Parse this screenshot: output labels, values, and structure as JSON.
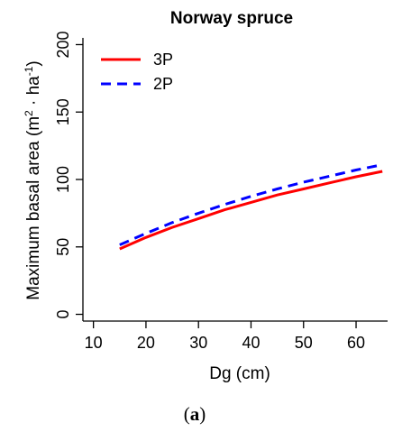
{
  "chart_data": {
    "type": "line",
    "title": "Norway spruce",
    "xlabel": "Dg (cm)",
    "ylabel": {
      "main": "Maximum basal area (m",
      "sup1": "2",
      "mid": " · ha",
      "sup2": "-1",
      "end": ")"
    },
    "xlim": [
      8,
      66
    ],
    "ylim": [
      -5,
      205
    ],
    "x_ticks": [
      10,
      20,
      30,
      40,
      50,
      60
    ],
    "y_ticks": [
      0,
      50,
      100,
      150,
      200
    ],
    "legend_position": "top-left",
    "grid": false,
    "x": [
      15,
      20,
      25,
      30,
      35,
      40,
      45,
      50,
      55,
      60,
      65
    ],
    "series": [
      {
        "name": "3P",
        "color": "#ff0000",
        "dash": "solid",
        "values": [
          48.5,
          57,
          64.5,
          71,
          77.5,
          83,
          88.5,
          93,
          97.5,
          102,
          106
        ]
      },
      {
        "name": "2P",
        "color": "#0000ff",
        "dash": "dashed",
        "values": [
          51.5,
          60,
          68,
          75,
          81.5,
          87.5,
          93,
          98,
          102.5,
          107,
          111
        ]
      }
    ]
  },
  "caption": {
    "open": "(",
    "letter": "a",
    "close": ")"
  }
}
